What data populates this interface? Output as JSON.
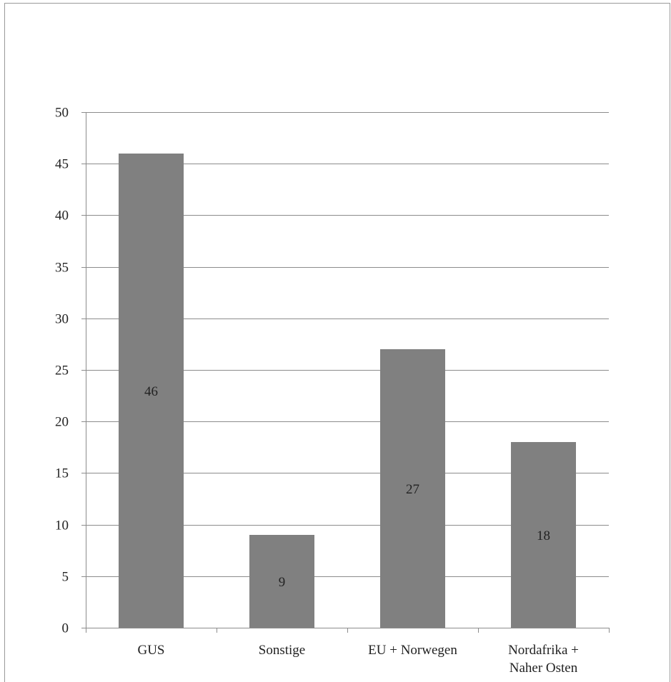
{
  "chart_data": {
    "type": "bar",
    "categories": [
      "GUS",
      "Sonstige",
      "EU + Norwegen",
      "Nordafrika +\nNaher Osten"
    ],
    "values": [
      46,
      9,
      27,
      18
    ],
    "data_labels": [
      "46",
      "9",
      "27",
      "18"
    ],
    "ylim": [
      0,
      50
    ],
    "yticks": [
      0,
      5,
      10,
      15,
      20,
      25,
      30,
      35,
      40,
      45,
      50
    ],
    "grid": true,
    "legend": "none",
    "bar_color": "#808080",
    "grid_color": "#8c8c8c"
  }
}
